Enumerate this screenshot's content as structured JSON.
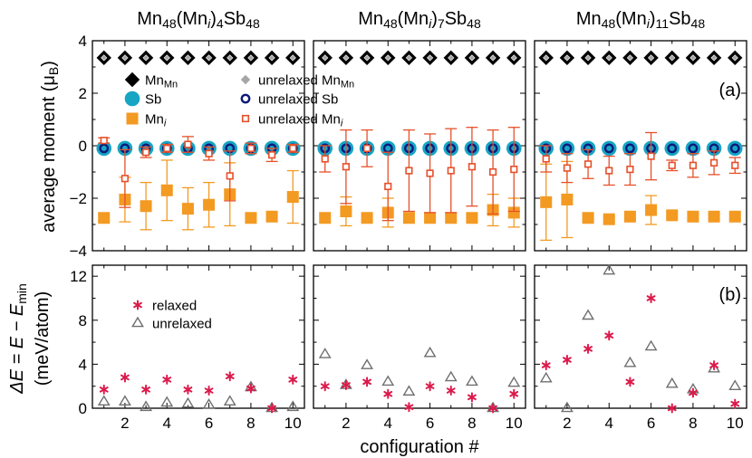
{
  "chart_data": {
    "type": "scatter",
    "xlabel": "configuration #",
    "x": [
      1,
      2,
      3,
      4,
      5,
      6,
      7,
      8,
      9,
      10
    ],
    "x_ticks": [
      2,
      4,
      6,
      8,
      10
    ],
    "x_tick_labels": [
      "2",
      "4",
      "6",
      "8",
      "10"
    ],
    "titles": [
      {
        "base": "Mn",
        "s1": "48",
        "mid": "(Mn",
        "sub_i": "i",
        "close": ")",
        "n": "4",
        "tail": "Sb",
        "s2": "48"
      },
      {
        "base": "Mn",
        "s1": "48",
        "mid": "(Mn",
        "sub_i": "i",
        "close": ")",
        "n": "7",
        "tail": "Sb",
        "s2": "48"
      },
      {
        "base": "Mn",
        "s1": "48",
        "mid": "(Mn",
        "sub_i": "i",
        "close": ")",
        "n": "11",
        "tail": "Sb",
        "s2": "48"
      }
    ],
    "panel_a": {
      "label": "(a)",
      "ylabel": "average moment (μB)",
      "ylabel_main": "average moment (μ",
      "ylabel_sub": "B",
      "ylabel_close": ")",
      "ylim": [
        -4,
        4
      ],
      "yticks": [
        -4,
        -2,
        0,
        2,
        4
      ],
      "ytick_labels": [
        "−4",
        "−2",
        "0",
        "2",
        "4"
      ],
      "legend": [
        {
          "key": "mnmn",
          "main": "Mn",
          "sub": "Mn"
        },
        {
          "key": "umnmn",
          "main": "unrelaxed Mn",
          "sub": "Mn"
        },
        {
          "key": "sb",
          "main": "Sb",
          "sub": ""
        },
        {
          "key": "usb",
          "main": "unrelaxed Sb",
          "sub": ""
        },
        {
          "key": "mni",
          "main": "Mn",
          "sub": "i"
        },
        {
          "key": "umni",
          "main": "unrelaxed Mn",
          "sub": "i"
        }
      ],
      "subplots": [
        {
          "mnmn": [
            3.35,
            3.35,
            3.35,
            3.35,
            3.35,
            3.35,
            3.35,
            3.35,
            3.35,
            3.35
          ],
          "unrelaxed_mnmn": [
            3.35,
            3.35,
            3.35,
            3.35,
            3.35,
            3.35,
            3.35,
            3.35,
            3.35,
            3.35
          ],
          "sb": [
            -0.1,
            -0.1,
            -0.1,
            -0.1,
            -0.1,
            -0.1,
            -0.1,
            -0.1,
            -0.1,
            -0.1
          ],
          "unrelaxed_sb": [
            -0.1,
            -0.1,
            -0.1,
            -0.1,
            -0.1,
            -0.1,
            -0.1,
            -0.1,
            -0.1,
            -0.1
          ],
          "mni": [
            -2.75,
            -2.05,
            -2.3,
            -1.7,
            -2.4,
            -2.25,
            -1.85,
            -2.75,
            -2.7,
            -1.95
          ],
          "mni_err": [
            0.1,
            0.85,
            0.9,
            1.15,
            0.8,
            0.85,
            1.2,
            0.1,
            0.1,
            1.0
          ],
          "unrelaxed_mni": [
            0.2,
            -1.25,
            -0.25,
            -0.1,
            0.05,
            -0.3,
            -1.15,
            -0.1,
            -0.35,
            -0.1
          ],
          "unrelaxed_mni_err": [
            0.1,
            1.1,
            0.2,
            0.15,
            0.3,
            0.25,
            0.95,
            0.2,
            0.25,
            0.15
          ]
        },
        {
          "mnmn": [
            3.35,
            3.35,
            3.35,
            3.35,
            3.35,
            3.35,
            3.35,
            3.35,
            3.35,
            3.35
          ],
          "unrelaxed_mnmn": [
            3.35,
            3.35,
            3.35,
            3.35,
            3.35,
            3.35,
            3.35,
            3.35,
            3.35,
            3.35
          ],
          "sb": [
            -0.1,
            -0.1,
            -0.1,
            -0.1,
            -0.1,
            -0.1,
            -0.1,
            -0.1,
            -0.1,
            -0.1
          ],
          "unrelaxed_sb": [
            -0.1,
            -0.1,
            -0.1,
            -0.1,
            -0.1,
            -0.1,
            -0.1,
            -0.1,
            -0.1,
            -0.1
          ],
          "mni": [
            -2.75,
            -2.5,
            -2.75,
            -2.55,
            -2.75,
            -2.75,
            -2.75,
            -2.75,
            -2.45,
            -2.55
          ],
          "mni_err": [
            0.1,
            0.55,
            0.1,
            0.55,
            0.1,
            0.1,
            0.1,
            0.1,
            0.6,
            0.55
          ],
          "unrelaxed_mni": [
            -0.5,
            -0.8,
            -0.1,
            -1.55,
            -0.95,
            -1.05,
            -0.95,
            -0.8,
            -1.0,
            -0.9
          ],
          "unrelaxed_mni_err": [
            0.5,
            1.4,
            0.7,
            1.3,
            1.55,
            1.5,
            1.6,
            1.5,
            1.6,
            1.6
          ]
        },
        {
          "mnmn": [
            3.35,
            3.35,
            3.35,
            3.35,
            3.35,
            3.35,
            3.35,
            3.35,
            3.35,
            3.35
          ],
          "unrelaxed_mnmn": [
            3.35,
            3.35,
            3.35,
            3.35,
            3.35,
            3.35,
            3.35,
            3.35,
            3.35,
            3.35
          ],
          "sb": [
            -0.1,
            -0.1,
            -0.1,
            -0.1,
            -0.1,
            -0.1,
            -0.1,
            -0.1,
            -0.1,
            -0.1
          ],
          "unrelaxed_sb": [
            -0.1,
            -0.1,
            -0.1,
            -0.1,
            -0.1,
            -0.1,
            -0.1,
            -0.1,
            -0.1,
            -0.1
          ],
          "mni": [
            -2.15,
            -2.05,
            -2.75,
            -2.8,
            -2.7,
            -2.45,
            -2.65,
            -2.7,
            -2.7,
            -2.7
          ],
          "mni_err": [
            1.45,
            1.45,
            0.1,
            0.1,
            0.1,
            0.55,
            0.1,
            0.1,
            0.1,
            0.1
          ],
          "unrelaxed_mni": [
            -0.5,
            -0.85,
            -0.7,
            -0.95,
            -0.9,
            -0.4,
            -0.75,
            -0.75,
            -0.65,
            -0.75
          ],
          "unrelaxed_mni_err": [
            0.5,
            0.55,
            0.55,
            0.55,
            0.6,
            0.9,
            0.2,
            0.45,
            0.45,
            0.3
          ]
        }
      ]
    },
    "panel_b": {
      "label": "(b)",
      "ylabel": "ΔE = E − Emin (meV/atom)",
      "ylabel_delta": "ΔE = E − E",
      "ylabel_sub": "min",
      "ylabel_units": "(meV/atom)",
      "ylim": [
        0,
        13
      ],
      "yticks": [
        0,
        4,
        8,
        12
      ],
      "ytick_labels": [
        "0",
        "4",
        "8",
        "12"
      ],
      "legend": [
        {
          "key": "relaxed",
          "label": "relaxed"
        },
        {
          "key": "unrelaxed",
          "label": "unrelaxed"
        }
      ],
      "subplots": [
        {
          "relaxed": [
            1.7,
            2.8,
            1.7,
            2.6,
            1.7,
            1.6,
            2.9,
            1.8,
            0.0,
            2.6
          ],
          "unrelaxed": [
            0.6,
            0.6,
            0.1,
            0.5,
            0.4,
            0.3,
            0.6,
            1.9,
            0.0,
            0.1
          ]
        },
        {
          "relaxed": [
            2.0,
            2.1,
            2.4,
            1.3,
            0.1,
            2.0,
            1.6,
            1.0,
            0.0,
            1.3
          ],
          "unrelaxed": [
            4.9,
            2.1,
            3.9,
            2.4,
            1.5,
            5.0,
            2.8,
            2.4,
            0.0,
            2.3
          ]
        },
        {
          "relaxed": [
            3.9,
            4.4,
            5.4,
            6.6,
            2.4,
            10.0,
            0.0,
            1.4,
            3.9,
            0.4
          ],
          "unrelaxed": [
            2.7,
            0.0,
            8.4,
            12.5,
            4.1,
            5.6,
            2.2,
            1.7,
            3.6,
            2.0
          ]
        }
      ]
    },
    "colors": {
      "mnmn": "#000000",
      "unrelaxed_mnmn": "#a6a6a6",
      "sb": "#17a5c4",
      "unrelaxed_sb": "#0c1a7a",
      "mni": "#f39a23",
      "unrelaxed_mni": "#e6502a",
      "relaxed": "#dc1a4b",
      "unrelaxed": "#6f6f6f"
    }
  }
}
